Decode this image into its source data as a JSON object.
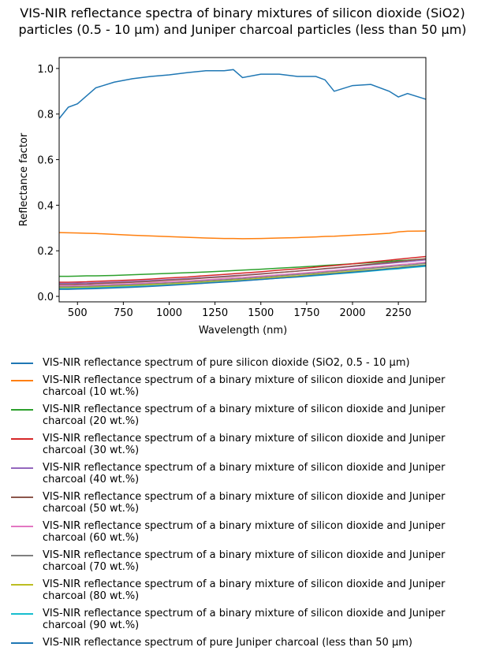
{
  "chart_data": {
    "type": "line",
    "title": "VIS-NIR reflectance spectra of binary mixtures of silicon dioxide (SiO2) particles (0.5 - 10 µm) and Juniper charcoal particles (less than 50 µm)",
    "x_label": "Wavelength (nm)",
    "y_label": "Reflectance factor",
    "x": [
      400,
      450,
      500,
      550,
      600,
      700,
      800,
      900,
      1000,
      1100,
      1200,
      1300,
      1350,
      1400,
      1500,
      1600,
      1700,
      1800,
      1850,
      1900,
      2000,
      2100,
      2200,
      2250,
      2300,
      2400
    ],
    "xlim": [
      400,
      2400
    ],
    "xticks": [
      500,
      750,
      1000,
      1250,
      1500,
      1750,
      2000,
      2250
    ],
    "ylim": [
      -0.024,
      1.048
    ],
    "yticks": [
      {
        "value": 0,
        "label": "0.0"
      },
      {
        "value": 0.2,
        "label": "0.2"
      },
      {
        "value": 0.4,
        "label": "0.4"
      },
      {
        "value": 0.6,
        "label": "0.6"
      },
      {
        "value": 0.8,
        "label": "0.8"
      },
      {
        "value": 1,
        "label": "1.0"
      }
    ],
    "series": [
      {
        "name": "VIS-NIR reflectance spectrum of pure silicon dioxide (SiO2, 0.5 - 10 µm)",
        "color": "#1f77b4",
        "values": [
          0.78,
          0.83,
          0.845,
          0.88,
          0.915,
          0.94,
          0.955,
          0.965,
          0.972,
          0.982,
          0.99,
          0.99,
          0.995,
          0.96,
          0.975,
          0.975,
          0.965,
          0.965,
          0.95,
          0.9,
          0.925,
          0.93,
          0.9,
          0.875,
          0.89,
          0.865
        ]
      },
      {
        "name": "VIS-NIR reflectance spectrum of a binary mixture of silicon dioxide and Juniper charcoal (10 wt.%)",
        "color": "#ff7f0e",
        "values": [
          0.28,
          0.279,
          0.278,
          0.277,
          0.276,
          0.272,
          0.268,
          0.265,
          0.262,
          0.259,
          0.256,
          0.254,
          0.254,
          0.253,
          0.254,
          0.256,
          0.258,
          0.261,
          0.263,
          0.264,
          0.268,
          0.272,
          0.277,
          0.283,
          0.286,
          0.287
        ]
      },
      {
        "name": "VIS-NIR reflectance spectrum of a binary mixture of silicon dioxide and Juniper charcoal (20 wt.%)",
        "color": "#2ca02c",
        "values": [
          0.088,
          0.088,
          0.089,
          0.09,
          0.09,
          0.092,
          0.095,
          0.098,
          0.101,
          0.104,
          0.107,
          0.111,
          0.113,
          0.115,
          0.119,
          0.124,
          0.128,
          0.133,
          0.136,
          0.138,
          0.143,
          0.148,
          0.154,
          0.157,
          0.159,
          0.165
        ]
      },
      {
        "name": "VIS-NIR reflectance spectrum of a binary mixture of silicon dioxide and Juniper charcoal (30 wt.%)",
        "color": "#d62728",
        "values": [
          0.062,
          0.062,
          0.063,
          0.064,
          0.066,
          0.069,
          0.072,
          0.076,
          0.081,
          0.085,
          0.091,
          0.096,
          0.099,
          0.102,
          0.108,
          0.115,
          0.121,
          0.128,
          0.132,
          0.135,
          0.143,
          0.151,
          0.159,
          0.163,
          0.167,
          0.175
        ]
      },
      {
        "name": "VIS-NIR reflectance spectrum of a binary mixture of silicon dioxide and Juniper charcoal (40 wt.%)",
        "color": "#9467bd",
        "values": [
          0.057,
          0.057,
          0.058,
          0.059,
          0.06,
          0.063,
          0.066,
          0.07,
          0.074,
          0.078,
          0.083,
          0.088,
          0.091,
          0.093,
          0.099,
          0.105,
          0.111,
          0.117,
          0.121,
          0.124,
          0.131,
          0.138,
          0.145,
          0.149,
          0.152,
          0.16
        ]
      },
      {
        "name": "VIS-NIR reflectance spectrum of a binary mixture of silicon dioxide and Juniper charcoal (50 wt.%)",
        "color": "#8c564b",
        "values": [
          0.052,
          0.052,
          0.053,
          0.054,
          0.056,
          0.059,
          0.062,
          0.066,
          0.071,
          0.075,
          0.081,
          0.086,
          0.089,
          0.092,
          0.098,
          0.105,
          0.111,
          0.118,
          0.122,
          0.125,
          0.133,
          0.141,
          0.149,
          0.153,
          0.157,
          0.165
        ]
      },
      {
        "name": "VIS-NIR reflectance spectrum of a binary mixture of silicon dioxide and Juniper charcoal (60 wt.%)",
        "color": "#e377c2",
        "values": [
          0.047,
          0.047,
          0.048,
          0.049,
          0.05,
          0.053,
          0.056,
          0.06,
          0.064,
          0.068,
          0.073,
          0.078,
          0.081,
          0.083,
          0.089,
          0.095,
          0.101,
          0.107,
          0.111,
          0.114,
          0.121,
          0.128,
          0.135,
          0.139,
          0.142,
          0.15
        ]
      },
      {
        "name": "VIS-NIR reflectance spectrum of a binary mixture of silicon dioxide and Juniper charcoal (70 wt.%)",
        "color": "#7f7f7f",
        "values": [
          0.042,
          0.042,
          0.043,
          0.044,
          0.045,
          0.048,
          0.051,
          0.055,
          0.059,
          0.063,
          0.068,
          0.073,
          0.076,
          0.078,
          0.084,
          0.09,
          0.096,
          0.102,
          0.106,
          0.109,
          0.116,
          0.123,
          0.13,
          0.134,
          0.137,
          0.145
        ]
      },
      {
        "name": "VIS-NIR reflectance spectrum of a binary mixture of silicon dioxide and Juniper charcoal (80 wt.%)",
        "color": "#bcbd22",
        "values": [
          0.038,
          0.038,
          0.039,
          0.04,
          0.041,
          0.044,
          0.047,
          0.051,
          0.054,
          0.059,
          0.063,
          0.068,
          0.071,
          0.073,
          0.079,
          0.085,
          0.09,
          0.097,
          0.1,
          0.103,
          0.11,
          0.116,
          0.123,
          0.127,
          0.131,
          0.138
        ]
      },
      {
        "name": "VIS-NIR reflectance spectrum of a binary mixture of silicon dioxide and Juniper charcoal (90 wt.%)",
        "color": "#17becf",
        "values": [
          0.034,
          0.034,
          0.035,
          0.036,
          0.037,
          0.04,
          0.043,
          0.046,
          0.05,
          0.054,
          0.059,
          0.064,
          0.066,
          0.069,
          0.074,
          0.08,
          0.085,
          0.091,
          0.094,
          0.098,
          0.104,
          0.111,
          0.118,
          0.121,
          0.125,
          0.132
        ]
      },
      {
        "name": "VIS-NIR reflectance spectrum of pure Juniper charcoal (less than 50 µm)",
        "color": "#1f77b4",
        "values": [
          0.031,
          0.031,
          0.032,
          0.033,
          0.034,
          0.037,
          0.04,
          0.044,
          0.048,
          0.053,
          0.058,
          0.063,
          0.065,
          0.068,
          0.074,
          0.08,
          0.086,
          0.093,
          0.096,
          0.099,
          0.106,
          0.113,
          0.121,
          0.124,
          0.128,
          0.136
        ]
      }
    ]
  }
}
